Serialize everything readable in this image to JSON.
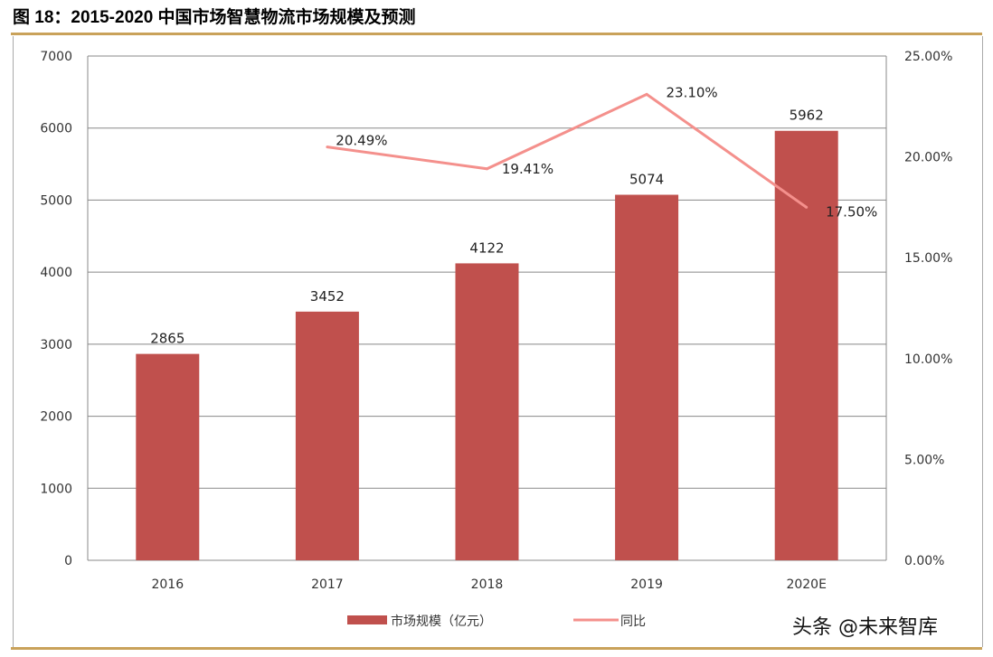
{
  "chart_data": {
    "type": "bar",
    "title": "图 18：2015-2020 中国市场智慧物流市场规模及预测",
    "categories": [
      "2016",
      "2017",
      "2018",
      "2019",
      "2020E"
    ],
    "series": [
      {
        "name": "市场规模（亿元）",
        "type": "bar",
        "axis": "left",
        "values": [
          2865,
          3452,
          4122,
          5074,
          5962
        ],
        "labels": [
          "2865",
          "3452",
          "4122",
          "5074",
          "5962"
        ],
        "color": "#C0504D"
      },
      {
        "name": "同比",
        "type": "line",
        "axis": "right",
        "values": [
          null,
          20.49,
          19.41,
          23.1,
          17.5
        ],
        "labels": [
          "",
          "20.49%",
          "19.41%",
          "23.10%",
          "17.50%"
        ],
        "color": "#F4908C"
      }
    ],
    "ylim": [
      0,
      7000
    ],
    "yticks": [
      "0",
      "1000",
      "2000",
      "3000",
      "4000",
      "5000",
      "6000",
      "7000"
    ],
    "y2lim": [
      0,
      25
    ],
    "y2ticks": [
      "0.00%",
      "5.00%",
      "10.00%",
      "15.00%",
      "20.00%",
      "25.00%"
    ],
    "grid": true,
    "legend": "bottom"
  },
  "watermark": "头条 @未来智库"
}
